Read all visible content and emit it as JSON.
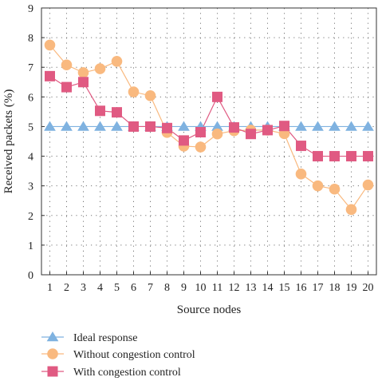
{
  "chart_data": {
    "type": "line",
    "xlabel": "Source nodes",
    "ylabel": "Received packets (%)",
    "xlim": [
      0.5,
      20.5
    ],
    "ylim": [
      0,
      9
    ],
    "x": [
      1,
      2,
      3,
      4,
      5,
      6,
      7,
      8,
      9,
      10,
      11,
      12,
      13,
      14,
      15,
      16,
      17,
      18,
      19,
      20
    ],
    "yticks": [
      0,
      1,
      2,
      3,
      4,
      5,
      6,
      7,
      8,
      9
    ],
    "grid": true,
    "legend_position": "bottom",
    "series": [
      {
        "name": "Ideal response",
        "marker": "triangle",
        "color": "#7fb2e0",
        "values": [
          5,
          5,
          5,
          5,
          5,
          5,
          5,
          5,
          5,
          5,
          5,
          5,
          5,
          5,
          5,
          5,
          5,
          5,
          5,
          5
        ]
      },
      {
        "name": "Without congestion control",
        "marker": "circle",
        "color": "#f9b97f",
        "values": [
          7.75,
          7.08,
          6.82,
          6.95,
          7.2,
          6.17,
          6.04,
          4.8,
          4.34,
          4.31,
          4.75,
          4.86,
          4.88,
          4.88,
          4.76,
          3.4,
          3.0,
          2.89,
          2.2,
          3.03
        ]
      },
      {
        "name": "With congestion control",
        "marker": "square",
        "color": "#e05a82",
        "values": [
          6.7,
          6.33,
          6.5,
          5.53,
          5.48,
          5.0,
          5.0,
          4.95,
          4.53,
          4.81,
          6.0,
          4.97,
          4.75,
          4.88,
          5.02,
          4.35,
          4.0,
          4.0,
          4.0,
          4.0
        ]
      }
    ]
  }
}
